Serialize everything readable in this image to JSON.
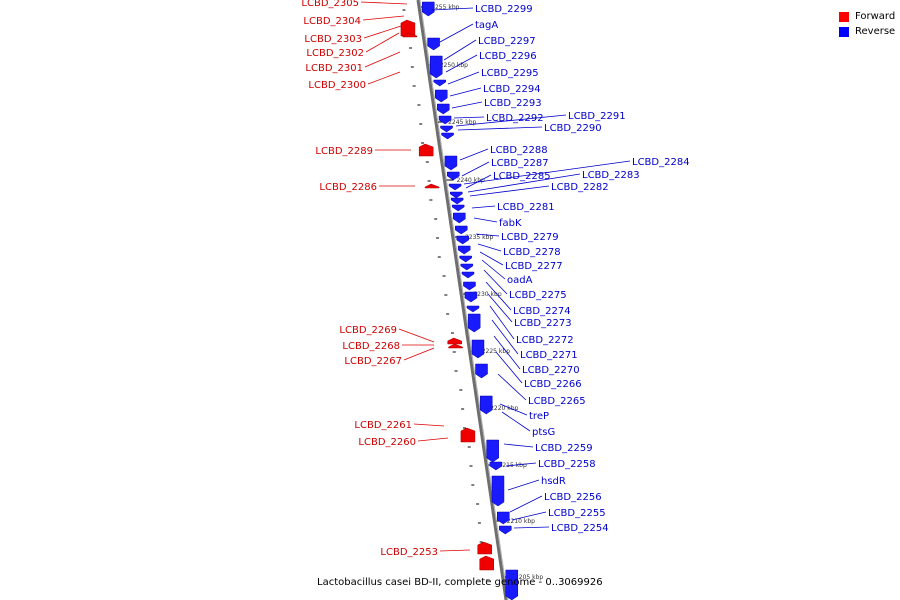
{
  "legend": {
    "items": [
      {
        "label": "Forward",
        "color": "#ff0000"
      },
      {
        "label": "Reverse",
        "color": "#0000ff"
      }
    ]
  },
  "caption": "Lactobacillus casei BD-II, complete genome - 0..3069926",
  "colors": {
    "forward": "#ff0000",
    "reverse": "#0000ff",
    "backbone": "#808080",
    "text_forward": "#cc0000",
    "text_reverse": "#0000cc"
  },
  "ticks": [
    "2255 kbp",
    "2250 kbp",
    "2245 kbp",
    "2240 kbp",
    "2235 kbp",
    "2230 kbp",
    "2225 kbp",
    "2220 kbp",
    "2215 kbp",
    "2210 kbp",
    "2205 kbp"
  ],
  "forward_genes": [
    "LCBD_2305",
    "LCBD_2304",
    "LCBD_2303",
    "LCBD_2302",
    "LCBD_2301",
    "LCBD_2300",
    "LCBD_2289",
    "LCBD_2286",
    "LCBD_2269",
    "LCBD_2268",
    "LCBD_2267",
    "LCBD_2261",
    "LCBD_2260",
    "LCBD_2253"
  ],
  "reverse_genes": [
    "LCBD_2299",
    "tagA",
    "LCBD_2297",
    "LCBD_2296",
    "LCBD_2295",
    "LCBD_2294",
    "LCBD_2293",
    "LCBD_2292",
    "LCBD_2291",
    "LCBD_2290",
    "LCBD_2288",
    "LCBD_2287",
    "LCBD_2284",
    "LCBD_2285",
    "LCBD_2283",
    "LCBD_2282",
    "LCBD_2281",
    "fabK",
    "LCBD_2279",
    "LCBD_2278",
    "LCBD_2277",
    "oadA",
    "LCBD_2275",
    "LCBD_2274",
    "LCBD_2273",
    "LCBD_2272",
    "LCBD_2271",
    "LCBD_2270",
    "LCBD_2266",
    "LCBD_2265",
    "treP",
    "ptsG",
    "LCBD_2259",
    "LCBD_2258",
    "hsdR",
    "LCBD_2256",
    "LCBD_2255",
    "LCBD_2254"
  ]
}
